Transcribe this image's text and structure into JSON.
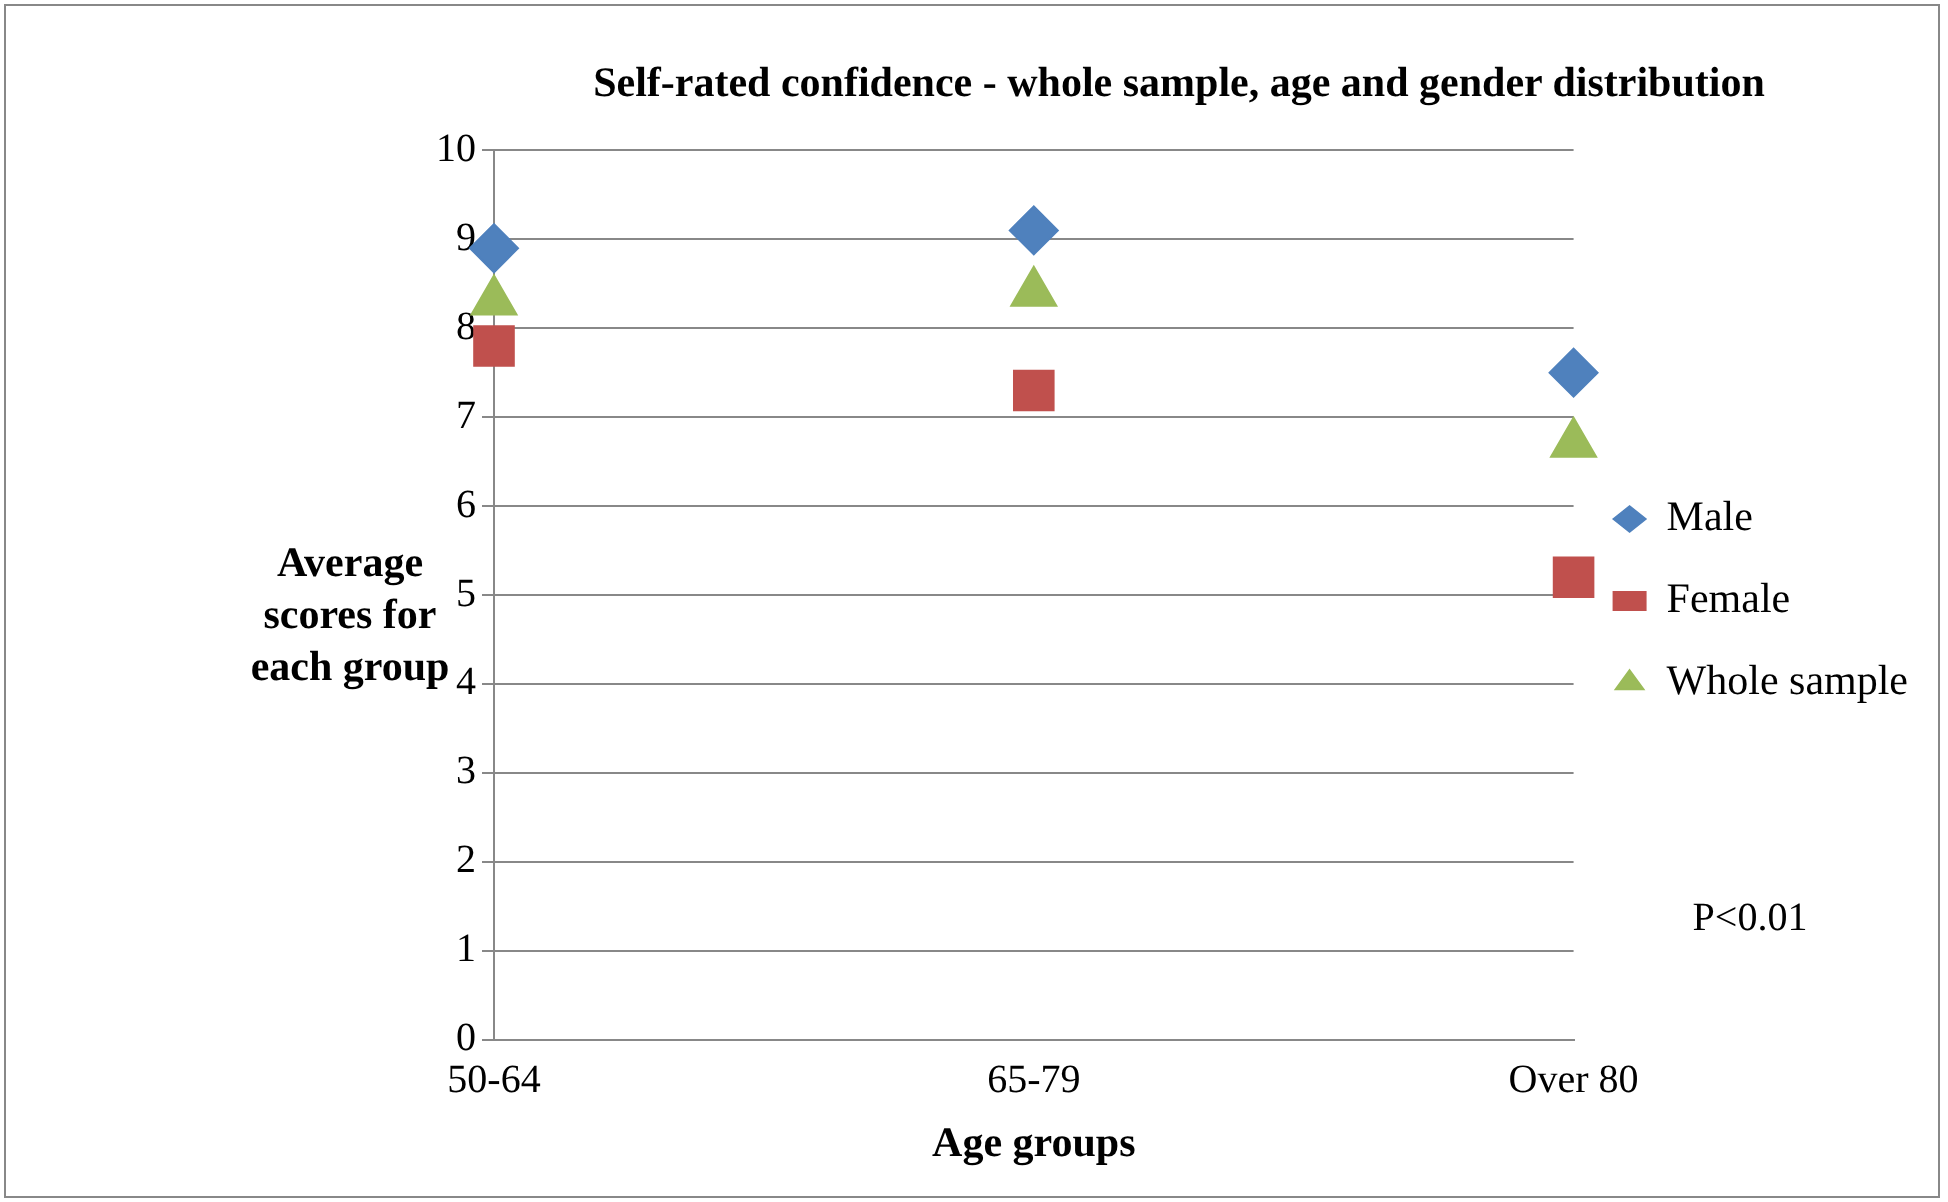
{
  "chart_data": {
    "type": "scatter",
    "title": "Self-rated confidence - whole sample, age and gender distribution",
    "xlabel": "Age groups",
    "ylabel": "Average scores for each group",
    "categories": [
      "50-64",
      "65-79",
      "Over 80"
    ],
    "series": [
      {
        "name": "Male",
        "color": "#4f81bd",
        "marker": "diamond",
        "values": [
          8.9,
          9.1,
          7.5
        ]
      },
      {
        "name": "Female",
        "color": "#c0504d",
        "marker": "square",
        "values": [
          7.8,
          7.3,
          5.2
        ]
      },
      {
        "name": "Whole sample",
        "color": "#9bbb59",
        "marker": "triangle",
        "values": [
          8.3,
          8.4,
          6.7
        ]
      }
    ],
    "ylim": [
      0,
      10
    ],
    "yticks": [
      0,
      1,
      2,
      3,
      4,
      5,
      6,
      7,
      8,
      9,
      10
    ],
    "grid": "y",
    "legend": "right",
    "annotations": [
      "P<0.01"
    ]
  }
}
